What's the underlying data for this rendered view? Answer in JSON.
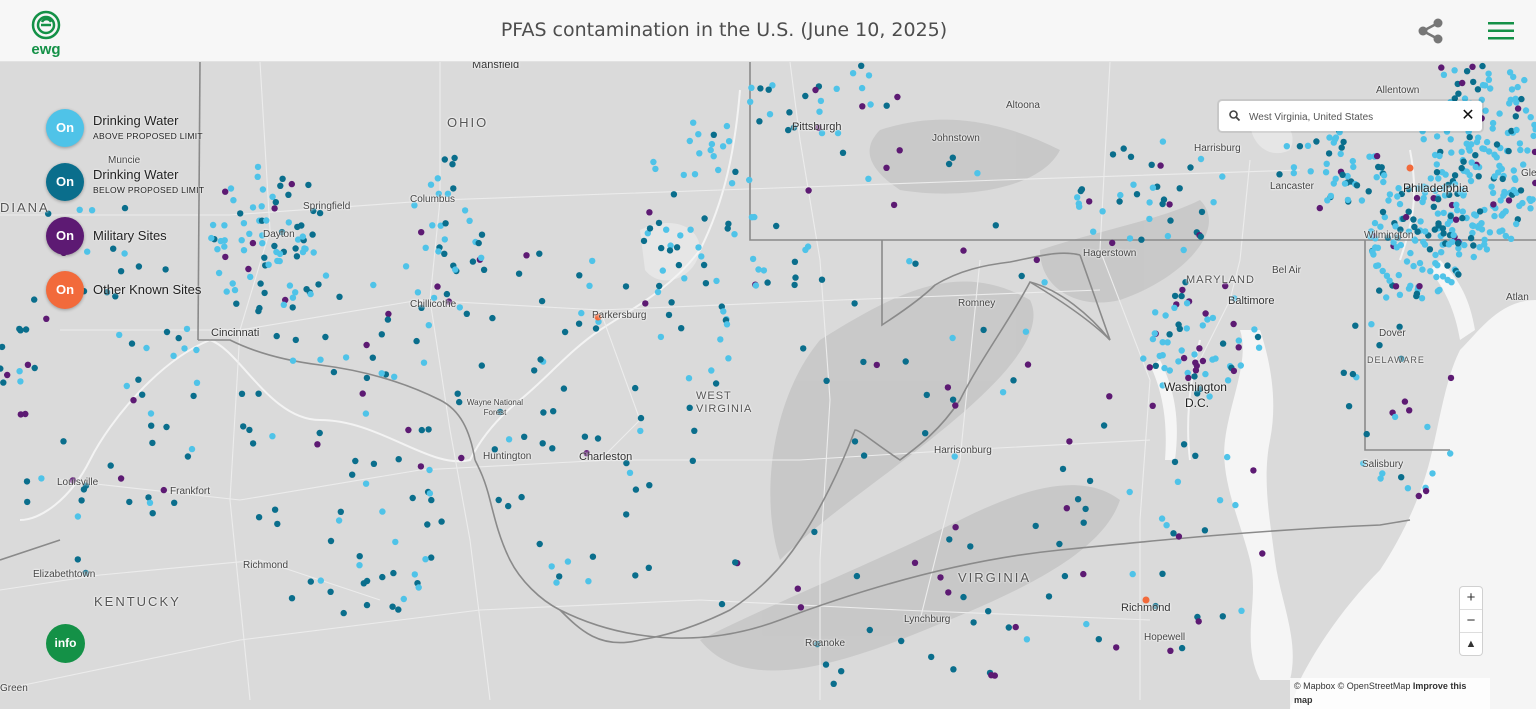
{
  "header": {
    "logo_text": "ewg",
    "title": "PFAS contamination in the U.S. (June 10, 2025)",
    "share_icon": "share-icon",
    "menu_icon": "hamburger-menu-icon"
  },
  "legend": [
    {
      "state": "On",
      "title": "Drinking Water",
      "sub": "ABOVE PROPOSED LIMIT",
      "color": "#4fc3e8"
    },
    {
      "state": "On",
      "title": "Drinking Water",
      "sub": "BELOW PROPOSED LIMIT",
      "color": "#0a6e8c"
    },
    {
      "state": "On",
      "title": "Military Sites",
      "sub": "",
      "color": "#5d1a73"
    },
    {
      "state": "On",
      "title": "Other Known Sites",
      "sub": "",
      "color": "#f26a3b"
    }
  ],
  "info_label": "info",
  "search": {
    "value": "West Virginia, United States",
    "clear": "✕"
  },
  "zoom": {
    "in": "+",
    "out": "−",
    "reset": "▲"
  },
  "attribution": {
    "mapbox": "© Mapbox",
    "osm": "© OpenStreetMap",
    "improve": "Improve this map"
  },
  "labels": {
    "states": [
      "OHIO",
      "WEST VIRGINIA",
      "KENTUCKY",
      "VIRGINIA",
      "MARYLAND",
      "DELAWARE",
      "DIANA"
    ],
    "cities": [
      "Mansfield",
      "Muncie",
      "Springfield",
      "Dayton",
      "Columbus",
      "Chillicothe",
      "Cincinnati",
      "Parkersburg",
      "Wayne National Forest",
      "Huntington",
      "Charleston",
      "Louisville",
      "Frankfort",
      "Richmond",
      "Elizabethtown",
      "Pittsburgh",
      "Altoona",
      "Johnstown",
      "Harrisburg",
      "Lancaster",
      "Philadelphia",
      "Allentown",
      "Wilmington",
      "Hagerstown",
      "Romney",
      "Harrisonburg",
      "Bel Air",
      "Baltimore",
      "Washington",
      "D.C.",
      "Dover",
      "Salisbury",
      "Lynchburg",
      "Roanoke",
      "Richmond",
      "Hopewell",
      "Atlan",
      "Green",
      "Glen"
    ]
  },
  "colors": {
    "above": "#4fc3e8",
    "below": "#0a6e8c",
    "military": "#5d1a73",
    "other": "#f26a3b",
    "brand": "#149147"
  }
}
